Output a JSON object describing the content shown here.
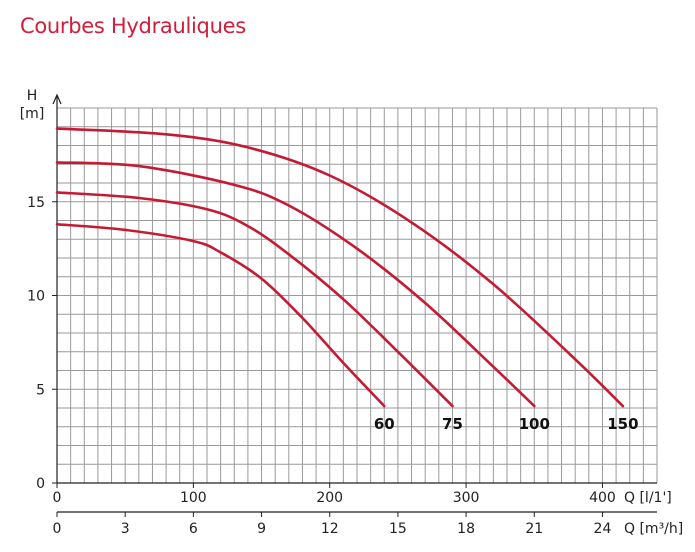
{
  "page": {
    "title": "Courbes Hydrauliques"
  },
  "chart_data": {
    "type": "line",
    "ylabel_line1": "H",
    "ylabel_line2": "[m]",
    "xlabel_primary": "Q [l/1']",
    "xlabel_secondary": "Q [m³/h]",
    "xlim": [
      0,
      440
    ],
    "ylim": [
      0,
      20
    ],
    "x_ticks": [
      0,
      100,
      200,
      300,
      400
    ],
    "x_secondary_ticks": [
      0,
      3,
      6,
      9,
      12,
      15,
      18,
      21,
      24
    ],
    "y_ticks": [
      0,
      5,
      10,
      15
    ],
    "grid": true,
    "colors": {
      "curve": "#c41a33",
      "grid": "#9a9a9a",
      "title": "#d01e3c"
    },
    "series": [
      {
        "name": "60",
        "x": [
          0,
          50,
          100,
          120,
          150,
          180,
          210,
          240
        ],
        "y": [
          13.8,
          13.5,
          12.9,
          12.3,
          10.9,
          8.8,
          6.4,
          4.1
        ]
      },
      {
        "name": "75",
        "x": [
          0,
          60,
          110,
          140,
          170,
          210,
          250,
          290
        ],
        "y": [
          15.5,
          15.2,
          14.6,
          13.7,
          12.2,
          9.8,
          7.0,
          4.1
        ]
      },
      {
        "name": "100",
        "x": [
          0,
          60,
          130,
          170,
          220,
          270,
          320,
          350
        ],
        "y": [
          17.1,
          16.9,
          15.9,
          14.8,
          12.5,
          9.6,
          6.2,
          4.1
        ]
      },
      {
        "name": "150",
        "x": [
          0,
          80,
          140,
          200,
          260,
          320,
          380,
          415
        ],
        "y": [
          18.9,
          18.6,
          17.9,
          16.4,
          13.9,
          10.6,
          6.6,
          4.1
        ]
      }
    ]
  }
}
